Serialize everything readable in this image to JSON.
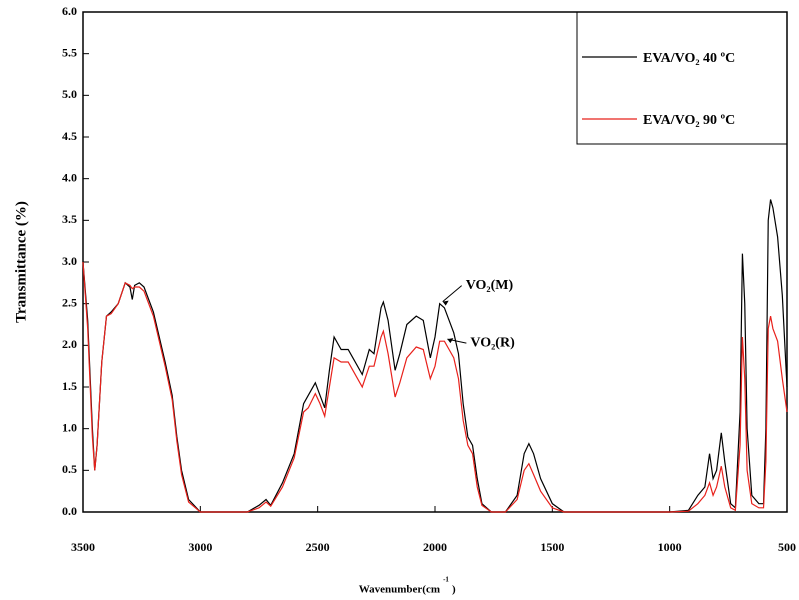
{
  "chart_data": {
    "type": "line",
    "ylabel": "Transmittance (%)",
    "xlabel": "Wavenumber(cm",
    "xlabel_sup": "-1",
    "xlabel_end": ")",
    "xlim": [
      3500,
      500
    ],
    "ylim": [
      0,
      6
    ],
    "xticks": [
      3500,
      3000,
      2500,
      2000,
      1500,
      1000,
      500
    ],
    "yticks": [
      {
        "value": 0,
        "label": "0.0"
      },
      0.5,
      {
        "value": 1,
        "label": "1.0"
      },
      1.5,
      {
        "value": 2,
        "label": "2.0"
      },
      2.5,
      {
        "value": 3,
        "label": "3.0"
      },
      3.5,
      {
        "value": 4,
        "label": "4.0"
      },
      4.5,
      {
        "value": 5,
        "label": "5.0"
      },
      5.5,
      {
        "value": 6,
        "label": "6.0"
      }
    ],
    "legend": "upper right",
    "annotations": [
      {
        "text": "VO₂(M)",
        "x": 1980,
        "y": 2.5
      },
      {
        "text": "VO₂(R)",
        "x": 1960,
        "y": 2.05
      }
    ],
    "x": [
      3500,
      3480,
      3460,
      3450,
      3440,
      3420,
      3400,
      3380,
      3350,
      3320,
      3300,
      3290,
      3280,
      3260,
      3240,
      3200,
      3150,
      3120,
      3100,
      3080,
      3050,
      3000,
      2900,
      2800,
      2750,
      2720,
      2700,
      2650,
      2600,
      2560,
      2540,
      2510,
      2490,
      2470,
      2450,
      2430,
      2400,
      2370,
      2350,
      2310,
      2280,
      2260,
      2230,
      2220,
      2200,
      2170,
      2150,
      2120,
      2080,
      2050,
      2020,
      2000,
      1980,
      1960,
      1940,
      1920,
      1900,
      1880,
      1860,
      1840,
      1820,
      1800,
      1760,
      1700,
      1650,
      1620,
      1600,
      1580,
      1550,
      1500,
      1450,
      1000,
      920,
      880,
      850,
      830,
      815,
      800,
      780,
      765,
      740,
      720,
      700,
      690,
      680,
      670,
      650,
      620,
      600,
      590,
      580,
      570,
      560,
      540,
      520,
      500
    ],
    "series": [
      {
        "name": "EVA/VO₂ 40 ºC",
        "color": "#000000",
        "values": [
          3.0,
          2.3,
          1.0,
          0.5,
          0.8,
          1.8,
          2.35,
          2.4,
          2.5,
          2.75,
          2.7,
          2.55,
          2.72,
          2.75,
          2.7,
          2.4,
          1.8,
          1.4,
          0.9,
          0.5,
          0.15,
          0,
          0,
          0,
          0.08,
          0.15,
          0.08,
          0.35,
          0.7,
          1.3,
          1.4,
          1.55,
          1.4,
          1.25,
          1.7,
          2.1,
          1.95,
          1.95,
          1.85,
          1.65,
          1.95,
          1.9,
          2.45,
          2.52,
          2.3,
          1.7,
          1.9,
          2.25,
          2.35,
          2.3,
          1.85,
          2.1,
          2.5,
          2.45,
          2.3,
          2.15,
          1.9,
          1.3,
          0.9,
          0.8,
          0.4,
          0.1,
          0,
          0,
          0.2,
          0.7,
          0.82,
          0.7,
          0.4,
          0.1,
          0,
          0,
          0.02,
          0.2,
          0.3,
          0.7,
          0.4,
          0.5,
          0.95,
          0.6,
          0.1,
          0.05,
          1.2,
          3.1,
          2.5,
          1.0,
          0.2,
          0.1,
          0.1,
          1.0,
          3.5,
          3.75,
          3.65,
          3.3,
          2.6,
          1.5
        ]
      },
      {
        "name": "EVA/VO₂ 90 ºC",
        "color": "#e8211b",
        "values": [
          3.0,
          2.2,
          0.9,
          0.5,
          0.8,
          1.8,
          2.35,
          2.38,
          2.5,
          2.75,
          2.72,
          2.68,
          2.7,
          2.7,
          2.65,
          2.35,
          1.75,
          1.35,
          0.85,
          0.45,
          0.12,
          0,
          0,
          0,
          0.05,
          0.12,
          0.07,
          0.3,
          0.65,
          1.2,
          1.25,
          1.42,
          1.3,
          1.15,
          1.5,
          1.85,
          1.8,
          1.8,
          1.7,
          1.5,
          1.75,
          1.75,
          2.1,
          2.17,
          1.9,
          1.38,
          1.55,
          1.85,
          1.98,
          1.95,
          1.6,
          1.75,
          2.05,
          2.05,
          1.95,
          1.85,
          1.6,
          1.1,
          0.8,
          0.7,
          0.3,
          0.08,
          0,
          0,
          0.15,
          0.5,
          0.58,
          0.45,
          0.25,
          0.05,
          0,
          0,
          0.01,
          0.1,
          0.2,
          0.35,
          0.2,
          0.3,
          0.55,
          0.3,
          0.05,
          0.02,
          0.8,
          2.1,
          1.6,
          0.5,
          0.1,
          0.05,
          0.05,
          0.6,
          2.2,
          2.35,
          2.2,
          2.05,
          1.6,
          1.2
        ]
      }
    ]
  }
}
